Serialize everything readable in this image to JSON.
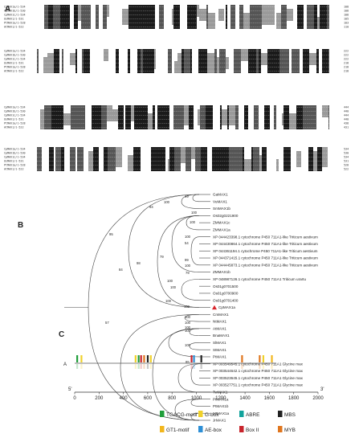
{
  "panels": [
    "A",
    "B",
    "C"
  ],
  "alignment": {
    "blocks": [
      {
        "rows": [
          {
            "name": "CpMAX1a/1-534",
            "end": "108"
          },
          {
            "name": "CpMAX1b/1-530",
            "end": "108"
          },
          {
            "name": "CpMAX1c/1-534",
            "end": "108"
          },
          {
            "name": "OsMAX1/1-531",
            "end": "105"
          },
          {
            "name": "PtMAX1a/1-528",
            "end": "103"
          },
          {
            "name": "AtMAX1/1-522",
            "end": "110"
          }
        ]
      },
      {
        "rows": [
          {
            "name": "CpMAX1a/1-534",
            "end": "222"
          },
          {
            "name": "CpMAX1b/1-530",
            "end": "222"
          },
          {
            "name": "CpMAX1c/1-534",
            "end": "222"
          },
          {
            "name": "OsMAX1/1-531",
            "end": "218"
          },
          {
            "name": "PtMAX1a/1-528",
            "end": "218"
          },
          {
            "name": "AtMAX1/1-522",
            "end": "218"
          }
        ]
      },
      {
        "rows": [
          {
            "name": "CpMAX1a/1-534",
            "end": "444"
          },
          {
            "name": "CpMAX1b/1-530",
            "end": "440"
          },
          {
            "name": "CpMAX1c/1-534",
            "end": "444"
          },
          {
            "name": "OsMAX1/1-531",
            "end": "440"
          },
          {
            "name": "PtMAX1a/1-528",
            "end": "438"
          },
          {
            "name": "AtMAX1/1-522",
            "end": "431"
          }
        ]
      },
      {
        "rows": [
          {
            "name": "CpMAX1a/1-534",
            "end": "534"
          },
          {
            "name": "CpMAX1b/1-530",
            "end": "530"
          },
          {
            "name": "CpMAX1c/1-534",
            "end": "534"
          },
          {
            "name": "OsMAX1/1-531",
            "end": "531"
          },
          {
            "name": "PtMAX1a/1-528",
            "end": "528"
          },
          {
            "name": "AtMAX1/1-522",
            "end": "522"
          }
        ]
      }
    ]
  },
  "tree": {
    "highlight_leaf": "CpMAX1a",
    "highlight_color": "#d8232a",
    "leaves": [
      "GaMAX1",
      "VuMAX1",
      "SmMAX1b",
      "Os02g0221900",
      "ZMMAX1c",
      "ZMMAX1a",
      "XP 044423398.1 cytochrome P450 711A1-like Triticum aestivum",
      "XP 044430864.1 cytochrome P450 711A1-like Triticum aestivum",
      "XP 044361194.1 cytochrome P450 711A1-like Triticum aestivum",
      "XP 044371415.1 cytochrome P450 711A1-like Triticum aestivum",
      "XP 044445873.1 cytochrome P450 711A1-like Triticum aestivum",
      "ZMMAX1b",
      "XP 048987126.1 cytochrome P450 711A1 Triticum urartu",
      "Os01g0701500",
      "Os01g0700900",
      "Os01g0701400",
      "CpMAX1a",
      "CmMAX1",
      "NtMAX1",
      "AtMAX1",
      "BnaMAX1",
      "SlMAX1",
      "StMAX1",
      "PtMAX1",
      "XP 003549545.1 cytochrome P450 711A1 Glycine max",
      "XP 003544642.1 cytochrome P450 711A1 Glycine max",
      "XP 003523645.1 cytochrome P450 711A1 Glycine max",
      "XP 003527751.1 cytochrome P450 711A1 Glycine max",
      "TwMAX1",
      "PtMAX1a",
      "PtMAX1b",
      "MtMAX1a",
      "JrMAX1"
    ],
    "bootstraps": [
      "99",
      "100",
      "94",
      "100",
      "100",
      "95",
      "100",
      "54",
      "79",
      "99",
      "100",
      "98",
      "79",
      "100",
      "84",
      "100",
      "100",
      "100",
      "100",
      "100",
      "100",
      "57",
      "100",
      "100",
      "85"
    ]
  },
  "promoter": {
    "gene_label": "A",
    "axis": {
      "min": 0,
      "max": 2000,
      "ticks": [
        "0",
        "200",
        "400",
        "600",
        "800",
        "1000",
        "1200",
        "1400",
        "1600",
        "1800",
        "2000"
      ],
      "left_end": "5'",
      "right_end": "3'"
    },
    "elements": [
      {
        "type": "TGACG-motif",
        "color": "#1f9e3a"
      },
      {
        "type": "G-box",
        "color": "#f0d12a"
      },
      {
        "type": "ABRE",
        "color": "#12a39c"
      },
      {
        "type": "MBS",
        "color": "#222222"
      },
      {
        "type": "GT1-motif",
        "color": "#f2b61c"
      },
      {
        "type": "AE-box",
        "color": "#2d8fd6"
      },
      {
        "type": "Box II",
        "color": "#c8242c"
      },
      {
        "type": "MYB",
        "color": "#e0761e"
      }
    ],
    "sites": [
      {
        "pos": 20,
        "type": "TGACG-motif"
      },
      {
        "pos": 55,
        "type": "G-box"
      },
      {
        "pos": 500,
        "type": "G-box"
      },
      {
        "pos": 525,
        "type": "TGACG-motif"
      },
      {
        "pos": 545,
        "type": "Box II"
      },
      {
        "pos": 570,
        "type": "MYB"
      },
      {
        "pos": 600,
        "type": "MBS"
      },
      {
        "pos": 625,
        "type": "G-box"
      },
      {
        "pos": 960,
        "type": "Box II"
      },
      {
        "pos": 980,
        "type": "AE-box"
      },
      {
        "pos": 1040,
        "type": "MBS"
      },
      {
        "pos": 1375,
        "type": "MYB"
      },
      {
        "pos": 1520,
        "type": "MYB"
      },
      {
        "pos": 1550,
        "type": "G-box"
      },
      {
        "pos": 1620,
        "type": "GT1-motif"
      }
    ]
  }
}
